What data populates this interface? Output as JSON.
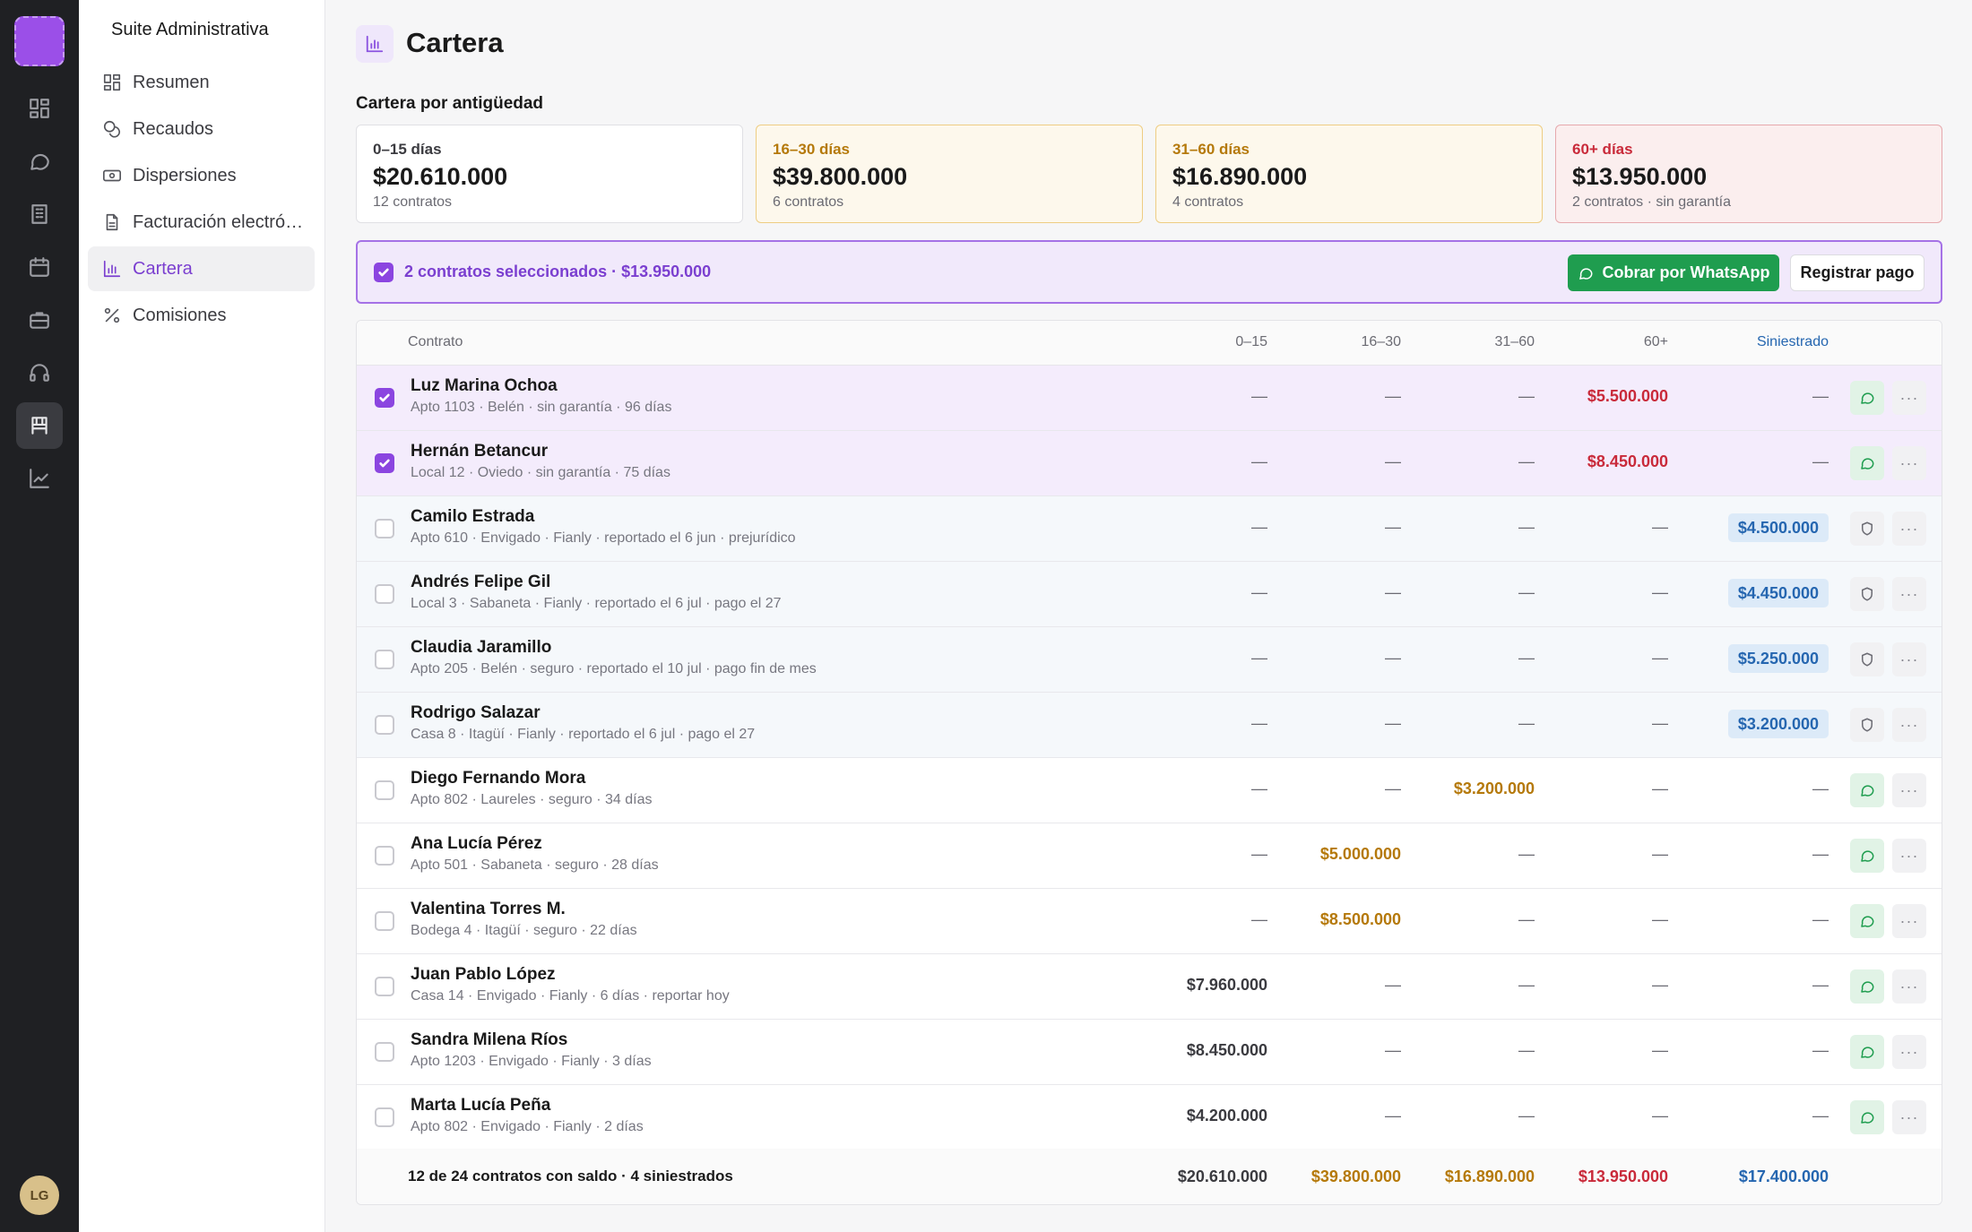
{
  "app": {
    "name": "Suite Administrativa",
    "user_initials": "LG"
  },
  "rail": {
    "icons": [
      "grid-icon",
      "chat-icon",
      "building-icon",
      "calendar-icon",
      "briefcase-icon",
      "headset-icon",
      "storefront-icon",
      "trend-icon"
    ],
    "active": "storefront-icon"
  },
  "sidebar": {
    "items": [
      {
        "label": "Resumen",
        "icon": "dashboard-icon"
      },
      {
        "label": "Recaudos",
        "icon": "coins-icon"
      },
      {
        "label": "Dispersiones",
        "icon": "banknote-icon"
      },
      {
        "label": "Facturación electró…",
        "icon": "document-icon"
      },
      {
        "label": "Cartera",
        "icon": "bar-chart-icon",
        "active": true
      },
      {
        "label": "Comisiones",
        "icon": "percent-icon"
      }
    ]
  },
  "page": {
    "title": "Cartera",
    "section_title": "Cartera por antigüedad"
  },
  "aging_cards": [
    {
      "label": "0–15 días",
      "amount": "$20.610.000",
      "sub": "12 contratos",
      "tone": "neutral"
    },
    {
      "label": "16–30 días",
      "amount": "$39.800.000",
      "sub": "6 contratos",
      "tone": "amber"
    },
    {
      "label": "31–60 días",
      "amount": "$16.890.000",
      "sub": "4 contratos",
      "tone": "amber"
    },
    {
      "label": "60+ días",
      "amount": "$13.950.000",
      "sub": "2 contratos · sin garantía",
      "tone": "red"
    }
  ],
  "selection": {
    "text": "2 contratos seleccionados · $13.950.000",
    "whatsapp_label": "Cobrar por WhatsApp",
    "pay_label": "Registrar pago"
  },
  "table": {
    "headers": {
      "contract": "Contrato",
      "d0_15": "0–15",
      "d16_30": "16–30",
      "d31_60": "31–60",
      "d60": "60+",
      "claim": "Siniestrado"
    },
    "rows": [
      {
        "name": "Luz Marina Ochoa",
        "sub": "Apto 1103 · Belén · sin garantía · 96 días",
        "d0_15": "—",
        "d16_30": "—",
        "d31_60": "—",
        "d60": "$5.500.000",
        "claim": "—",
        "checked": true,
        "action": "whatsapp"
      },
      {
        "name": "Hernán Betancur",
        "sub": "Local 12 · Oviedo · sin garantía · 75 días",
        "d0_15": "—",
        "d16_30": "—",
        "d31_60": "—",
        "d60": "$8.450.000",
        "claim": "—",
        "checked": true,
        "action": "whatsapp"
      },
      {
        "name": "Camilo Estrada",
        "sub": "Apto 610 · Envigado · Fianly · reportado el 6 jun · prejurídico",
        "d0_15": "—",
        "d16_30": "—",
        "d31_60": "—",
        "d60": "—",
        "claim": "$4.500.000",
        "checked": false,
        "action": "shield"
      },
      {
        "name": "Andrés Felipe Gil",
        "sub": "Local 3 · Sabaneta · Fianly · reportado el 6 jul · pago el 27",
        "d0_15": "—",
        "d16_30": "—",
        "d31_60": "—",
        "d60": "—",
        "claim": "$4.450.000",
        "checked": false,
        "action": "shield"
      },
      {
        "name": "Claudia Jaramillo",
        "sub": "Apto 205 · Belén · seguro · reportado el 10 jul · pago fin de mes",
        "d0_15": "—",
        "d16_30": "—",
        "d31_60": "—",
        "d60": "—",
        "claim": "$5.250.000",
        "checked": false,
        "action": "shield"
      },
      {
        "name": "Rodrigo Salazar",
        "sub": "Casa 8 · Itagüí · Fianly · reportado el 6 jul · pago el 27",
        "d0_15": "—",
        "d16_30": "—",
        "d31_60": "—",
        "d60": "—",
        "claim": "$3.200.000",
        "checked": false,
        "action": "shield"
      },
      {
        "name": "Diego Fernando Mora",
        "sub": "Apto 802 · Laureles · seguro · 34 días",
        "d0_15": "—",
        "d16_30": "—",
        "d31_60": "$3.200.000",
        "d60": "—",
        "claim": "—",
        "checked": false,
        "action": "whatsapp"
      },
      {
        "name": "Ana Lucía Pérez",
        "sub": "Apto 501 · Sabaneta · seguro · 28 días",
        "d0_15": "—",
        "d16_30": "$5.000.000",
        "d31_60": "—",
        "d60": "—",
        "claim": "—",
        "checked": false,
        "action": "whatsapp"
      },
      {
        "name": "Valentina Torres M.",
        "sub": "Bodega 4 · Itagüí · seguro · 22 días",
        "d0_15": "—",
        "d16_30": "$8.500.000",
        "d31_60": "—",
        "d60": "—",
        "claim": "—",
        "checked": false,
        "action": "whatsapp"
      },
      {
        "name": "Juan Pablo López",
        "sub": "Casa 14 · Envigado · Fianly · 6 días · reportar hoy",
        "d0_15": "$7.960.000",
        "d16_30": "—",
        "d31_60": "—",
        "d60": "—",
        "claim": "—",
        "checked": false,
        "action": "whatsapp"
      },
      {
        "name": "Sandra Milena Ríos",
        "sub": "Apto 1203 · Envigado · Fianly · 3 días",
        "d0_15": "$8.450.000",
        "d16_30": "—",
        "d31_60": "—",
        "d60": "—",
        "claim": "—",
        "checked": false,
        "action": "whatsapp"
      },
      {
        "name": "Marta Lucía Peña",
        "sub": "Apto 802 · Envigado · Fianly · 2 días",
        "d0_15": "$4.200.000",
        "d16_30": "—",
        "d31_60": "—",
        "d60": "—",
        "claim": "—",
        "checked": false,
        "action": "whatsapp"
      }
    ],
    "footer": {
      "text": "12 de 24 contratos con saldo · 4 siniestrados",
      "d0_15": "$20.610.000",
      "d16_30": "$39.800.000",
      "d31_60": "$16.890.000",
      "d60": "$13.950.000",
      "claim": "$17.400.000"
    }
  },
  "colors": {
    "accent": "#8b45e0",
    "whatsapp": "#1f9d4f",
    "amber": "#b5790a",
    "red": "#c92a3a",
    "claim_blue": "#2566b0"
  }
}
